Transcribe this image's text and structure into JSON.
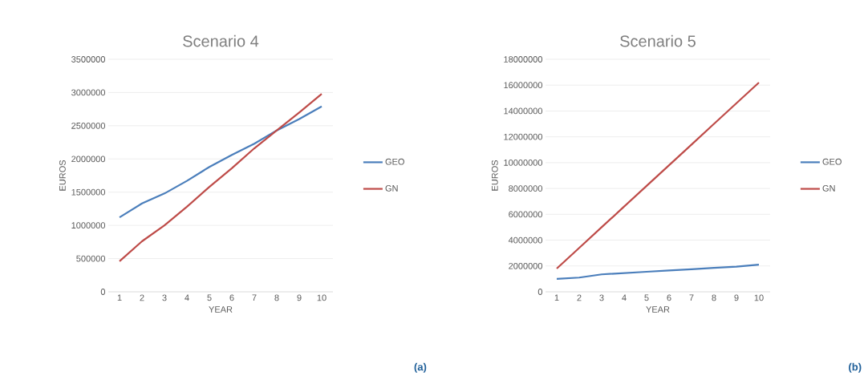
{
  "chart_data": [
    {
      "type": "line",
      "title": "Scenario 4",
      "xlabel": "YEAR",
      "ylabel": "EUROS",
      "categories": [
        "1",
        "2",
        "3",
        "4",
        "5",
        "6",
        "7",
        "8",
        "9",
        "10"
      ],
      "series": [
        {
          "name": "GEO",
          "color": "#4a7ebb",
          "values": [
            1120000,
            1330000,
            1480000,
            1670000,
            1880000,
            2060000,
            2230000,
            2430000,
            2600000,
            2790000
          ]
        },
        {
          "name": "GN",
          "color": "#be4b48",
          "values": [
            460000,
            760000,
            1000000,
            1280000,
            1580000,
            1860000,
            2160000,
            2430000,
            2700000,
            2980000
          ]
        }
      ],
      "ylim": [
        0,
        3500000
      ],
      "yticks": [
        0,
        500000,
        1000000,
        1500000,
        2000000,
        2500000,
        3000000,
        3500000
      ],
      "grid": "y",
      "legend": "right",
      "annotations": [
        "(a)"
      ]
    },
    {
      "type": "line",
      "title": "Scenario 5",
      "xlabel": "YEAR",
      "ylabel": "EUROS",
      "categories": [
        "1",
        "2",
        "3",
        "4",
        "5",
        "6",
        "7",
        "8",
        "9",
        "10"
      ],
      "series": [
        {
          "name": "GEO",
          "color": "#4a7ebb",
          "values": [
            1000000,
            1100000,
            1350000,
            1450000,
            1550000,
            1650000,
            1750000,
            1850000,
            1950000,
            2100000
          ]
        },
        {
          "name": "GN",
          "color": "#be4b48",
          "values": [
            1800000,
            3400000,
            5000000,
            6600000,
            8200000,
            9800000,
            11400000,
            13000000,
            14600000,
            16200000
          ]
        }
      ],
      "ylim": [
        0,
        18000000
      ],
      "yticks": [
        0,
        2000000,
        4000000,
        6000000,
        8000000,
        10000000,
        12000000,
        14000000,
        16000000,
        18000000
      ],
      "grid": "y",
      "legend": "right",
      "annotations": [
        "(b)"
      ]
    }
  ]
}
